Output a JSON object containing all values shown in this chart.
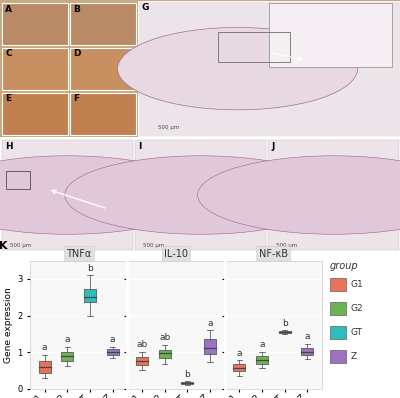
{
  "panel_label": "K",
  "subplots": [
    "TNFα",
    "IL-10",
    "NF-κB"
  ],
  "groups": [
    "G1",
    "G2",
    "GT",
    "Z"
  ],
  "group_colors": [
    "#E8735A",
    "#6DB356",
    "#2EBDBA",
    "#9B73C0"
  ],
  "ylabel": "Gene expression",
  "ylim": [
    0,
    3.5
  ],
  "yticks": [
    0,
    1,
    2,
    3
  ],
  "TNFa": {
    "G1": {
      "whislo": 0.28,
      "q1": 0.42,
      "med": 0.58,
      "q3": 0.75,
      "whishi": 0.92,
      "label": "a"
    },
    "G2": {
      "whislo": 0.62,
      "q1": 0.75,
      "med": 0.88,
      "q3": 1.0,
      "whishi": 1.15,
      "label": "a"
    },
    "GT": {
      "whislo": 2.0,
      "q1": 2.38,
      "med": 2.5,
      "q3": 2.72,
      "whishi": 3.1,
      "label": "b"
    },
    "Z": {
      "whislo": 0.85,
      "q1": 0.93,
      "med": 1.0,
      "q3": 1.07,
      "whishi": 1.15,
      "label": "a"
    }
  },
  "IL10": {
    "G1": {
      "whislo": 0.52,
      "q1": 0.65,
      "med": 0.76,
      "q3": 0.86,
      "whishi": 1.0,
      "label": "ab"
    },
    "G2": {
      "whislo": 0.68,
      "q1": 0.85,
      "med": 0.96,
      "q3": 1.06,
      "whishi": 1.2,
      "label": "ab"
    },
    "GT": {
      "whislo": 0.1,
      "q1": 0.12,
      "med": 0.14,
      "q3": 0.17,
      "whishi": 0.2,
      "label": "b"
    },
    "Z": {
      "whislo": 0.72,
      "q1": 0.95,
      "med": 1.1,
      "q3": 1.35,
      "whishi": 1.6,
      "label": "a"
    }
  },
  "NFkB": {
    "G1": {
      "whislo": 0.35,
      "q1": 0.48,
      "med": 0.57,
      "q3": 0.66,
      "whishi": 0.78,
      "label": "a"
    },
    "G2": {
      "whislo": 0.55,
      "q1": 0.68,
      "med": 0.78,
      "q3": 0.88,
      "whishi": 1.0,
      "label": "a"
    },
    "GT": {
      "whislo": 1.5,
      "q1": 1.52,
      "med": 1.55,
      "q3": 1.57,
      "whishi": 1.6,
      "label": "b"
    },
    "Z": {
      "whislo": 0.82,
      "q1": 0.92,
      "med": 1.0,
      "q3": 1.1,
      "whishi": 1.22,
      "label": "a"
    }
  },
  "legend_title": "group",
  "legend_labels": [
    "G1",
    "G2",
    "GT",
    "Z"
  ],
  "legend_colors": [
    "#E8735A",
    "#6DB356",
    "#2EBDBA",
    "#9B73C0"
  ],
  "top_panels_labels": [
    "A",
    "B",
    "C",
    "D",
    "E",
    "F"
  ],
  "top_panels_bg": "#C9A882",
  "top_panels_darker": "#B89060",
  "histo_bg": "#EDE4EA",
  "histo_circle_fill": "#DEC8D8",
  "histo_circle_edge": "#9B6090",
  "hij_labels": [
    "H",
    "I",
    "J"
  ],
  "g_label": "G",
  "strip_color": "#E0E0E0",
  "plot_bg": "#F8F8F8",
  "white": "#FFFFFF"
}
